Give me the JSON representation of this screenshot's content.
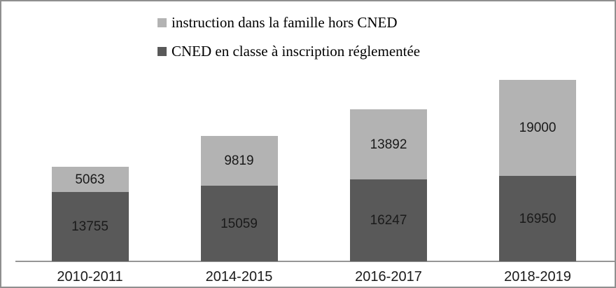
{
  "chart_data": {
    "type": "bar",
    "stacked": true,
    "title": "",
    "xlabel": "",
    "ylabel": "",
    "grid": false,
    "legend_position": "top",
    "data_labels": true,
    "categories": [
      "2010-2011",
      "2014-2015",
      "2016-2017",
      "2018-2019"
    ],
    "series": [
      {
        "name": "CNED en classe à inscription réglementée",
        "color": "#595959",
        "values": [
          13755,
          15059,
          16247,
          16950
        ]
      },
      {
        "name": "instruction dans la famille hors CNED",
        "color": "#B3B3B3",
        "values": [
          5063,
          9819,
          13892,
          19000
        ]
      }
    ],
    "legend": [
      {
        "label": "instruction dans la famille hors CNED",
        "color": "#B3B3B3"
      },
      {
        "label": "CNED en classe à inscription réglementée",
        "color": "#595959"
      }
    ],
    "axis_line_color": "#969696",
    "frame_border_color": "#8F8F8F",
    "label_text_color": "#1a1a1a"
  }
}
